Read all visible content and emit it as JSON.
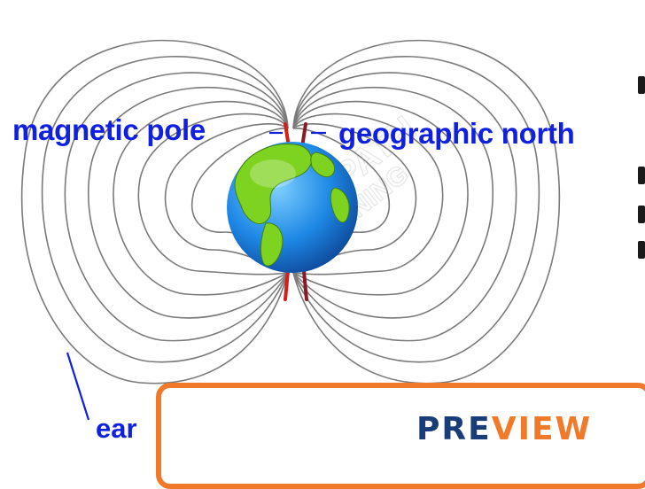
{
  "labels": {
    "magnetic_pole": "magnetic pole",
    "geographic_north": "geographic north",
    "earth_partial": "ear"
  },
  "preview": {
    "text_start": "PRE",
    "text_accent": "VIEW"
  },
  "watermark": {
    "line1": "SLEWPATH",
    "line2": "LEARNING"
  },
  "colors": {
    "label_blue": "#1020e0",
    "field_line": "#7a7a7a",
    "axis_red": "#d81b1b",
    "ocean": "#1e88e5",
    "land": "#7ed321",
    "preview_border": "#f07a2a",
    "preview_text": "#1a3d7a"
  },
  "icons": {
    "preview_logo": "book-stack-icon"
  }
}
